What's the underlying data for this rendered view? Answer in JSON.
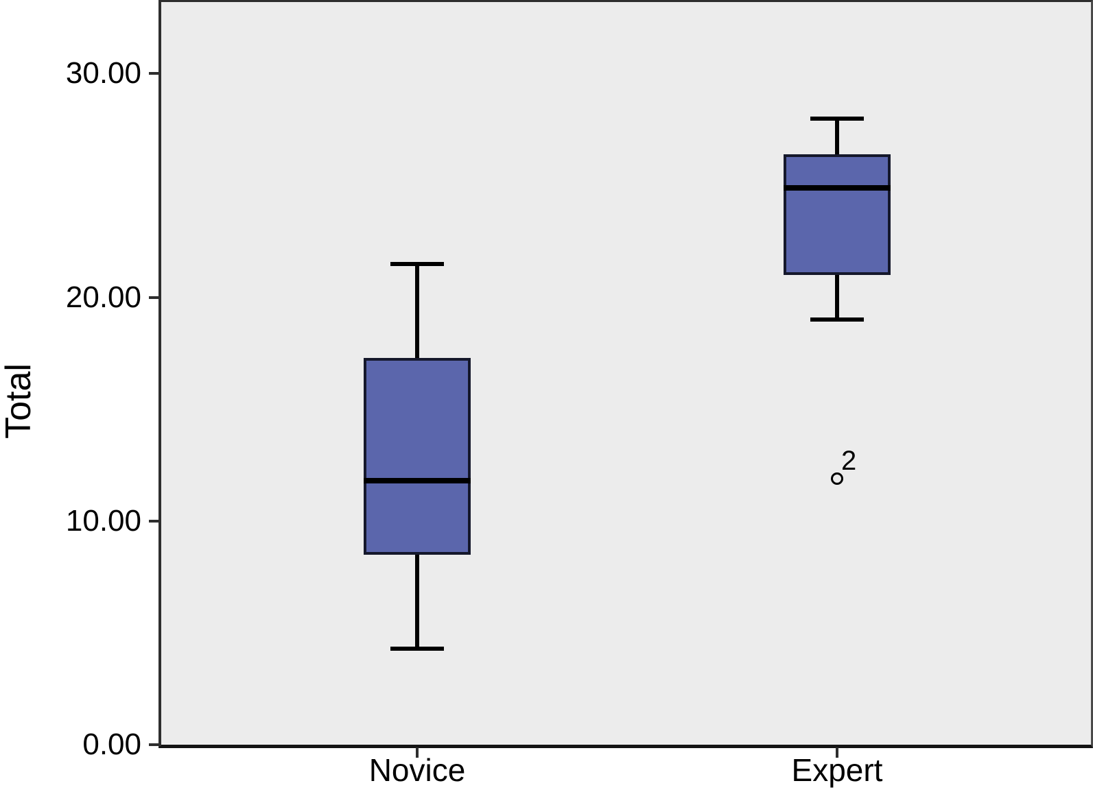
{
  "figure": {
    "background": "#FFFFFF",
    "plot_background": "#ECECEC",
    "axis_color": "#2E2E2E",
    "box_fill": "#5B66AC",
    "box_border": "#15182B",
    "line_color": "#000000",
    "text_color": "#000000"
  },
  "chart_data": {
    "type": "boxplot",
    "title": "",
    "xlabel": "",
    "ylabel": "Total",
    "categories": [
      "Novice",
      "Expert"
    ],
    "ylim": [
      0,
      33.2
    ],
    "grid": false,
    "legend": false,
    "yticks": [
      {
        "value": 0,
        "label": "0.00"
      },
      {
        "value": 10,
        "label": "10.00"
      },
      {
        "value": 20,
        "label": "20.00"
      },
      {
        "value": 30,
        "label": "30.00"
      }
    ],
    "series": [
      {
        "category": "Novice",
        "whisker_low": 4.3,
        "q1": 8.5,
        "median": 11.8,
        "q3": 17.3,
        "whisker_high": 21.5,
        "outliers": []
      },
      {
        "category": "Expert",
        "whisker_low": 19.0,
        "q1": 21.0,
        "median": 24.9,
        "q3": 26.4,
        "whisker_high": 28.0,
        "outliers": [
          {
            "value": 11.9,
            "label": "2"
          }
        ]
      }
    ]
  }
}
